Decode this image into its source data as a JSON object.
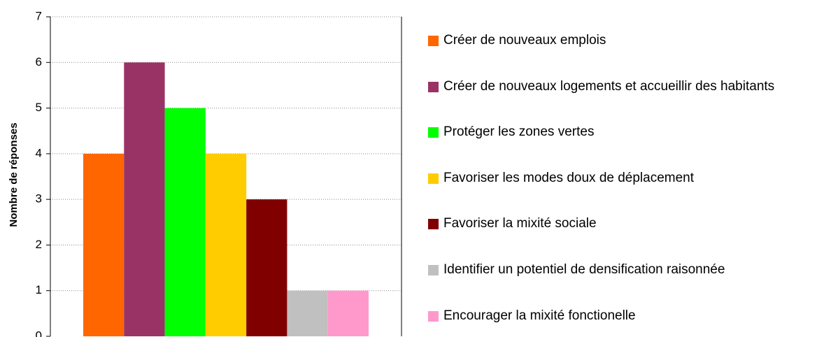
{
  "chart_data": {
    "type": "bar",
    "ylabel": "Nombre de réponses",
    "categories": [
      null
    ],
    "series": [
      {
        "name": "Créer de nouveaux emplois",
        "color": "#ff6600",
        "values": [
          4
        ]
      },
      {
        "name": "Créer de nouveaux logements et accueillir des habitants",
        "color": "#993366",
        "values": [
          6
        ]
      },
      {
        "name": "Protéger les zones vertes",
        "color": "#00ff00",
        "values": [
          5
        ]
      },
      {
        "name": "Favoriser les modes doux de déplacement",
        "color": "#ffcc00",
        "values": [
          4
        ]
      },
      {
        "name": "Favoriser la mixité sociale",
        "color": "#800000",
        "values": [
          3
        ]
      },
      {
        "name": "Identifier un potentiel de densification raisonnée",
        "color": "#c0c0c0",
        "values": [
          1
        ]
      },
      {
        "name": "Encourager la mixité fonctionelle",
        "color": "#ff99cc",
        "values": [
          1
        ]
      }
    ],
    "ylim": [
      0,
      7
    ],
    "yticks": [
      0,
      1,
      2,
      3,
      4,
      5,
      6,
      7
    ],
    "grid": true,
    "legend": "right"
  }
}
